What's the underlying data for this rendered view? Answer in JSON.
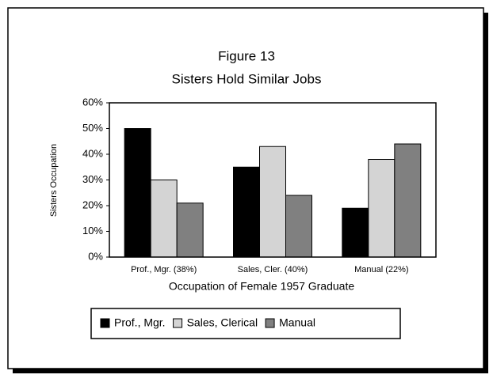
{
  "chart_data": {
    "type": "bar",
    "title": "Figure 13",
    "subtitle": "Sisters Hold Similar Jobs",
    "x_label": "Occupation of Female 1957 Graduate",
    "y_label": "Sisters Occupation",
    "categories": [
      "Prof., Mgr. (38%)",
      "Sales, Cler. (40%)",
      "Manual (22%)"
    ],
    "series": [
      {
        "name": "Prof., Mgr.",
        "color": "#000000",
        "values": [
          50,
          35,
          19
        ]
      },
      {
        "name": "Sales, Clerical",
        "color": "#d4d4d4",
        "values": [
          30,
          43,
          38
        ]
      },
      {
        "name": "Manual",
        "color": "#808080",
        "values": [
          21,
          24,
          44
        ]
      }
    ],
    "ylim": [
      0,
      60
    ],
    "yticks": [
      {
        "value": 0,
        "label": "0%"
      },
      {
        "value": 10,
        "label": "10%"
      },
      {
        "value": 20,
        "label": "20%"
      },
      {
        "value": 30,
        "label": "30%"
      },
      {
        "value": 40,
        "label": "40%"
      },
      {
        "value": 50,
        "label": "50%"
      },
      {
        "value": 60,
        "label": "60%"
      }
    ],
    "legend": "bottom"
  }
}
